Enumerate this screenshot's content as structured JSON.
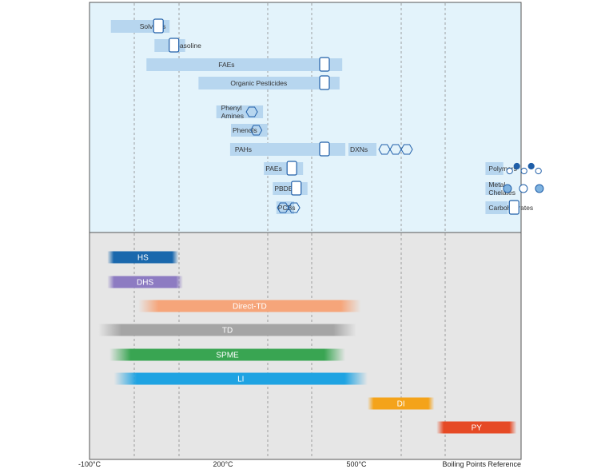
{
  "chart_data": {
    "type": "bar",
    "x_ticks": [
      "-100°C",
      "200°C",
      "500°C"
    ],
    "axis_caption": "Boiling Points Reference",
    "compounds": [
      {
        "label": "Solvents",
        "icon": "bottle-icon",
        "range": [
          -52,
          80
        ]
      },
      {
        "label": "Gasoline",
        "icon": "fuel-pump-icon",
        "range": [
          46,
          115
        ]
      },
      {
        "label": "FAEs",
        "icon": "oil-drop-icon",
        "range": [
          28,
          468
        ]
      },
      {
        "label": "Organic Pesticides",
        "icon": "pesticide-bottle-icon",
        "range": [
          145,
          462
        ]
      },
      {
        "label": [
          "Phenyl",
          "Amines"
        ],
        "icon": "aniline-structure-icon",
        "range": [
          185,
          290
        ]
      },
      {
        "label": "Phenols",
        "icon": "phenol-structure-icon",
        "range": [
          218,
          300
        ]
      },
      {
        "label": "PAHs",
        "icon": "flame-icon",
        "range": [
          216,
          475
        ]
      },
      {
        "label": "PAEs",
        "icon": "plastic-bottle-icon",
        "range": [
          292,
          380
        ]
      },
      {
        "label": "PBDEs",
        "icon": "fire-hazard-icon",
        "range": [
          312,
          390
        ]
      },
      {
        "label": "PCBs",
        "icon": "biphenyl-structure-icon",
        "range": [
          320,
          360
        ]
      },
      {
        "label": "DXNs",
        "icon": "dioxin-structure-icon",
        "range": [
          482,
          545
        ]
      },
      {
        "label": "Polymers",
        "icon": "polymer-chain-icon",
        "range": [
          790,
          830
        ]
      },
      {
        "label": [
          "Metal",
          "Chelates"
        ],
        "icon": "metal-chelate-icon",
        "range": [
          790,
          825
        ]
      },
      {
        "label": "Carbohydrates",
        "icon": "wheat-icon",
        "range": [
          790,
          840
        ]
      }
    ],
    "techniques": [
      {
        "name": "HS",
        "color": "#1a68ad",
        "range": [
          -60,
          100
        ]
      },
      {
        "name": "DHS",
        "color": "#8d7bc2",
        "range": [
          -60,
          110
        ]
      },
      {
        "name": "Direct-TD",
        "color": "#f6a57a",
        "range": [
          10,
          510
        ]
      },
      {
        "name": "TD",
        "color": "#a5a5a5",
        "range": [
          -80,
          500
        ]
      },
      {
        "name": "SPME",
        "color": "#39a552",
        "range": [
          -55,
          475
        ]
      },
      {
        "name": "LI",
        "color": "#1fa3e2",
        "range": [
          -45,
          525
        ]
      },
      {
        "name": "DI",
        "color": "#f4a31a",
        "range": [
          525,
          675
        ]
      },
      {
        "name": "PY",
        "color": "#e64a25",
        "range": [
          680,
          860
        ]
      }
    ]
  }
}
